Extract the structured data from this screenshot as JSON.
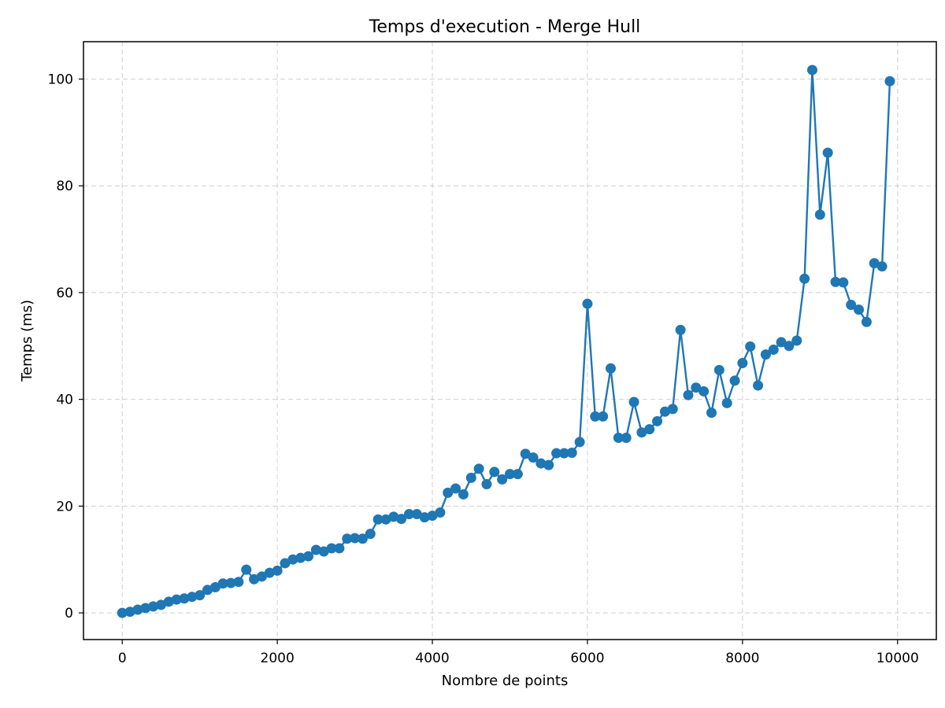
{
  "chart_data": {
    "type": "line",
    "title": "Temps d'execution - Merge Hull",
    "xlabel": "Nombre de points",
    "ylabel": "Temps (ms)",
    "xlim": [
      -500,
      10500
    ],
    "ylim": [
      -5,
      107
    ],
    "x_ticks": [
      0,
      2000,
      4000,
      6000,
      8000,
      10000
    ],
    "y_ticks": [
      0,
      20,
      40,
      60,
      80,
      100
    ],
    "grid": true,
    "color": "#1f77b4",
    "markers": true,
    "x": [
      0,
      100,
      200,
      300,
      400,
      500,
      600,
      700,
      800,
      900,
      1000,
      1100,
      1200,
      1300,
      1400,
      1500,
      1600,
      1700,
      1800,
      1900,
      2000,
      2100,
      2200,
      2300,
      2400,
      2500,
      2600,
      2700,
      2800,
      2900,
      3000,
      3100,
      3200,
      3300,
      3400,
      3500,
      3600,
      3700,
      3800,
      3900,
      4000,
      4100,
      4200,
      4300,
      4400,
      4500,
      4600,
      4700,
      4800,
      4900,
      5000,
      5100,
      5200,
      5300,
      5400,
      5500,
      5600,
      5700,
      5800,
      5900,
      6000,
      6100,
      6200,
      6300,
      6400,
      6500,
      6600,
      6700,
      6800,
      6900,
      7000,
      7100,
      7200,
      7300,
      7400,
      7500,
      7600,
      7700,
      7800,
      7900,
      8000,
      8100,
      8200,
      8300,
      8400,
      8500,
      8600,
      8700,
      8800,
      8900,
      9000,
      9100,
      9200,
      9300,
      9400,
      9500,
      9600,
      9700,
      9800,
      9900
    ],
    "y": [
      0,
      0.2,
      0.6,
      0.9,
      1.2,
      1.5,
      2.1,
      2.5,
      2.7,
      3.0,
      3.3,
      4.3,
      4.8,
      5.5,
      5.6,
      5.8,
      8.1,
      6.3,
      6.8,
      7.5,
      7.9,
      9.3,
      10.0,
      10.3,
      10.6,
      11.8,
      11.5,
      12.1,
      12.1,
      13.9,
      14.0,
      13.9,
      14.8,
      17.5,
      17.5,
      18.0,
      17.6,
      18.5,
      18.5,
      17.9,
      18.2,
      18.8,
      22.5,
      23.3,
      22.2,
      25.3,
      27.0,
      24.1,
      26.4,
      25.0,
      26.0,
      26.0,
      29.8,
      29.1,
      28.0,
      27.7,
      29.9,
      29.9,
      30.0,
      32.0,
      57.9,
      36.8,
      36.8,
      45.8,
      32.8,
      32.8,
      39.5,
      33.8,
      34.4,
      35.9,
      37.7,
      38.2,
      53.0,
      40.8,
      42.2,
      41.5,
      37.5,
      45.5,
      39.3,
      43.5,
      46.8,
      49.9,
      42.6,
      48.4,
      49.3,
      50.7,
      50.0,
      51.0,
      62.6,
      101.7,
      74.6,
      86.2,
      62.0,
      61.9,
      57.7,
      56.8,
      54.5,
      65.5,
      64.9,
      99.6
    ]
  }
}
